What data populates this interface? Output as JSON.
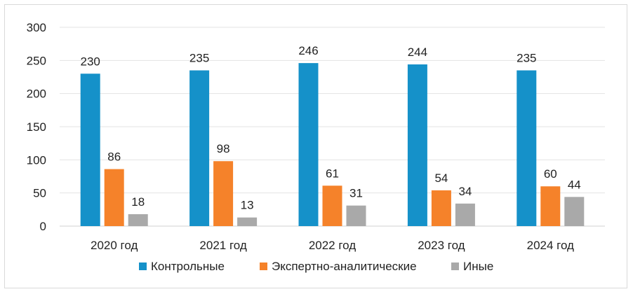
{
  "chart_data": {
    "type": "bar",
    "categories": [
      "2020 год",
      "2021 год",
      "2022 год",
      "2023 год",
      "2024 год"
    ],
    "series": [
      {
        "name": "Контрольные",
        "color": "#1591c9",
        "values": [
          230,
          235,
          246,
          244,
          235
        ]
      },
      {
        "name": "Экспертно-аналитические",
        "color": "#f5822a",
        "values": [
          86,
          98,
          61,
          54,
          60
        ]
      },
      {
        "name": "Иные",
        "color": "#a9a9a9",
        "values": [
          18,
          13,
          31,
          34,
          44
        ]
      }
    ],
    "ylim": [
      0,
      300
    ],
    "yticks": [
      0,
      50,
      100,
      150,
      200,
      250,
      300
    ],
    "grid": true,
    "legend_position": "bottom",
    "data_labels": true
  }
}
